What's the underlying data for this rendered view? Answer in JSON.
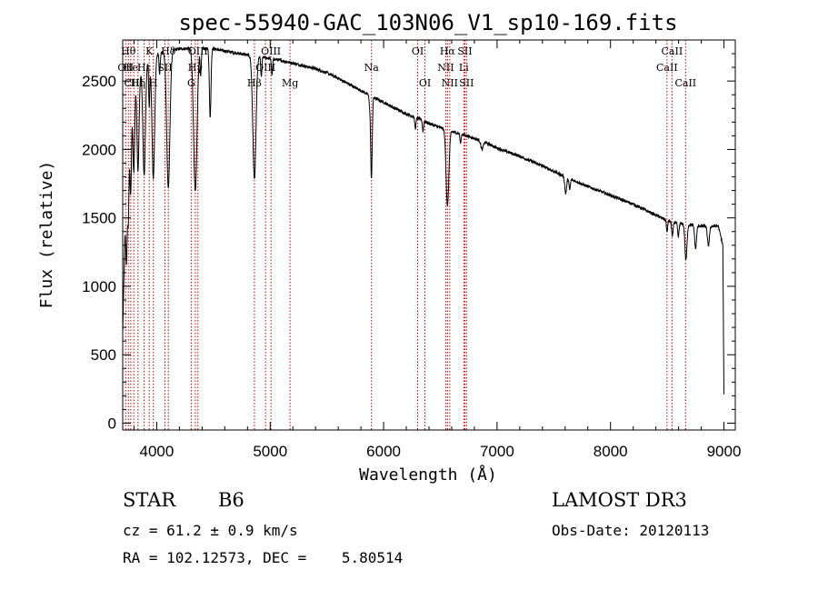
{
  "chart_data": {
    "type": "line",
    "title": "spec-55940-GAC_103N06_V1_sp10-169.fits",
    "xlabel": "Wavelength (Å)",
    "ylabel": "Flux (relative)",
    "xlim": [
      3700,
      9100
    ],
    "ylim": [
      -50,
      2800
    ],
    "xticks": [
      4000,
      5000,
      6000,
      7000,
      8000,
      9000
    ],
    "xticklabels": [
      "4000",
      "5000",
      "6000",
      "7000",
      "8000",
      "9000"
    ],
    "yticks": [
      0,
      500,
      1000,
      1500,
      2000,
      2500
    ],
    "yticklabels": [
      "0",
      "500",
      "1000",
      "1500",
      "2000",
      "2500"
    ],
    "continuum": {
      "x": [
        3700,
        3720,
        3740,
        3760,
        3780,
        3800,
        3850,
        3900,
        3950,
        4000,
        4100,
        4200,
        4300,
        4400,
        4500,
        4600,
        4700,
        4800,
        4900,
        5000,
        5100,
        5200,
        5300,
        5400,
        5500,
        5600,
        5700,
        5800,
        5900,
        6000,
        6100,
        6200,
        6300,
        6400,
        6500,
        6600,
        6700,
        6800,
        6900,
        7000,
        7200,
        7400,
        7600,
        7800,
        8000,
        8200,
        8400,
        8500,
        8600,
        8700,
        8800,
        8900,
        8950,
        8990,
        9000
      ],
      "y": [
        650,
        1400,
        1800,
        2150,
        2380,
        2500,
        2560,
        2620,
        2680,
        2700,
        2720,
        2735,
        2740,
        2740,
        2735,
        2720,
        2705,
        2690,
        2680,
        2665,
        2650,
        2630,
        2610,
        2590,
        2560,
        2520,
        2475,
        2430,
        2385,
        2345,
        2300,
        2260,
        2230,
        2190,
        2160,
        2130,
        2110,
        2080,
        2050,
        2010,
        1950,
        1880,
        1800,
        1730,
        1665,
        1600,
        1520,
        1480,
        1460,
        1450,
        1440,
        1440,
        1440,
        1300,
        200
      ]
    },
    "absorption_features": [
      {
        "center": 3734,
        "depth": 500,
        "width": 6
      },
      {
        "center": 3750,
        "depth": 500,
        "width": 6
      },
      {
        "center": 3771,
        "depth": 600,
        "width": 7
      },
      {
        "center": 3798,
        "depth": 650,
        "width": 8
      },
      {
        "center": 3835,
        "depth": 700,
        "width": 9
      },
      {
        "center": 3889,
        "depth": 800,
        "width": 11
      },
      {
        "center": 3934,
        "depth": 350,
        "width": 5
      },
      {
        "center": 3970,
        "depth": 900,
        "width": 12
      },
      {
        "center": 4026,
        "depth": 150,
        "width": 5
      },
      {
        "center": 4102,
        "depth": 1000,
        "width": 14
      },
      {
        "center": 4340,
        "depth": 1050,
        "width": 15
      },
      {
        "center": 4388,
        "depth": 200,
        "width": 5
      },
      {
        "center": 4471,
        "depth": 500,
        "width": 7
      },
      {
        "center": 4861,
        "depth": 900,
        "width": 14
      },
      {
        "center": 4922,
        "depth": 150,
        "width": 5
      },
      {
        "center": 5016,
        "depth": 120,
        "width": 5
      },
      {
        "center": 5876,
        "depth": 60,
        "width": 5
      },
      {
        "center": 5890,
        "depth": 380,
        "width": 6
      },
      {
        "center": 5896,
        "depth": 300,
        "width": 6
      },
      {
        "center": 6280,
        "depth": 80,
        "width": 6
      },
      {
        "center": 6347,
        "depth": 80,
        "width": 5
      },
      {
        "center": 6563,
        "depth": 550,
        "width": 12
      },
      {
        "center": 6678,
        "depth": 70,
        "width": 5
      },
      {
        "center": 6868,
        "depth": 60,
        "width": 10
      },
      {
        "center": 7605,
        "depth": 120,
        "width": 8
      },
      {
        "center": 7640,
        "depth": 80,
        "width": 6
      },
      {
        "center": 8498,
        "depth": 90,
        "width": 5
      },
      {
        "center": 8545,
        "depth": 110,
        "width": 6
      },
      {
        "center": 8598,
        "depth": 100,
        "width": 6
      },
      {
        "center": 8665,
        "depth": 260,
        "width": 9
      },
      {
        "center": 8750,
        "depth": 170,
        "width": 8
      },
      {
        "center": 8863,
        "depth": 140,
        "width": 9
      }
    ],
    "line_markers": [
      {
        "wavelength": 3726,
        "label": "OII",
        "row": 1
      },
      {
        "wavelength": 3750,
        "label": "Hθ",
        "row": 0
      },
      {
        "wavelength": 3771,
        "label": "He",
        "row": 1
      },
      {
        "wavelength": 3798,
        "label": "CIII",
        "row": 2
      },
      {
        "wavelength": 3835,
        "label": "Hη",
        "row": 2
      },
      {
        "wavelength": 3889,
        "label": "Hε",
        "row": 1
      },
      {
        "wavelength": 3934,
        "label": "K",
        "row": 0
      },
      {
        "wavelength": 3970,
        "label": "H",
        "row": 2
      },
      {
        "wavelength": 4072,
        "label": "SII",
        "row": 1
      },
      {
        "wavelength": 4102,
        "label": "Hδ",
        "row": 0
      },
      {
        "wavelength": 4304,
        "label": "G",
        "row": 2
      },
      {
        "wavelength": 4340,
        "label": "Hγ",
        "row": 1
      },
      {
        "wavelength": 4363,
        "label": "OIII",
        "row": 0
      },
      {
        "wavelength": 4861,
        "label": "Hβ",
        "row": 2
      },
      {
        "wavelength": 4959,
        "label": "OIII",
        "row": 1
      },
      {
        "wavelength": 5007,
        "label": "OIII",
        "row": 0
      },
      {
        "wavelength": 5175,
        "label": "Mg",
        "row": 2
      },
      {
        "wavelength": 5893,
        "label": "Na",
        "row": 1
      },
      {
        "wavelength": 6300,
        "label": "OI",
        "row": 0
      },
      {
        "wavelength": 6364,
        "label": "OI",
        "row": 2
      },
      {
        "wavelength": 6548,
        "label": "NII",
        "row": 1
      },
      {
        "wavelength": 6563,
        "label": "Hα",
        "row": 0
      },
      {
        "wavelength": 6583,
        "label": "NII",
        "row": 2
      },
      {
        "wavelength": 6707,
        "label": "Li",
        "row": 1
      },
      {
        "wavelength": 6716,
        "label": "SII",
        "row": 0
      },
      {
        "wavelength": 6731,
        "label": "SII",
        "row": 2
      },
      {
        "wavelength": 8498,
        "label": "CaII",
        "row": 1
      },
      {
        "wavelength": 8542,
        "label": "CaII",
        "row": 0
      },
      {
        "wavelength": 8662,
        "label": "CaII",
        "row": 2
      }
    ],
    "colors": {
      "spectrum": "#000000",
      "markers": "#cc0000",
      "axes": "#000000"
    }
  },
  "info": {
    "object_class": "STAR",
    "subclass": "B6",
    "survey": "LAMOST DR3",
    "redshift": "cz = 61.2 ± 0.9 km/s",
    "obs_date": "Obs-Date: 20120113",
    "coords": "RA = 102.12573, DEC =    5.80514"
  }
}
